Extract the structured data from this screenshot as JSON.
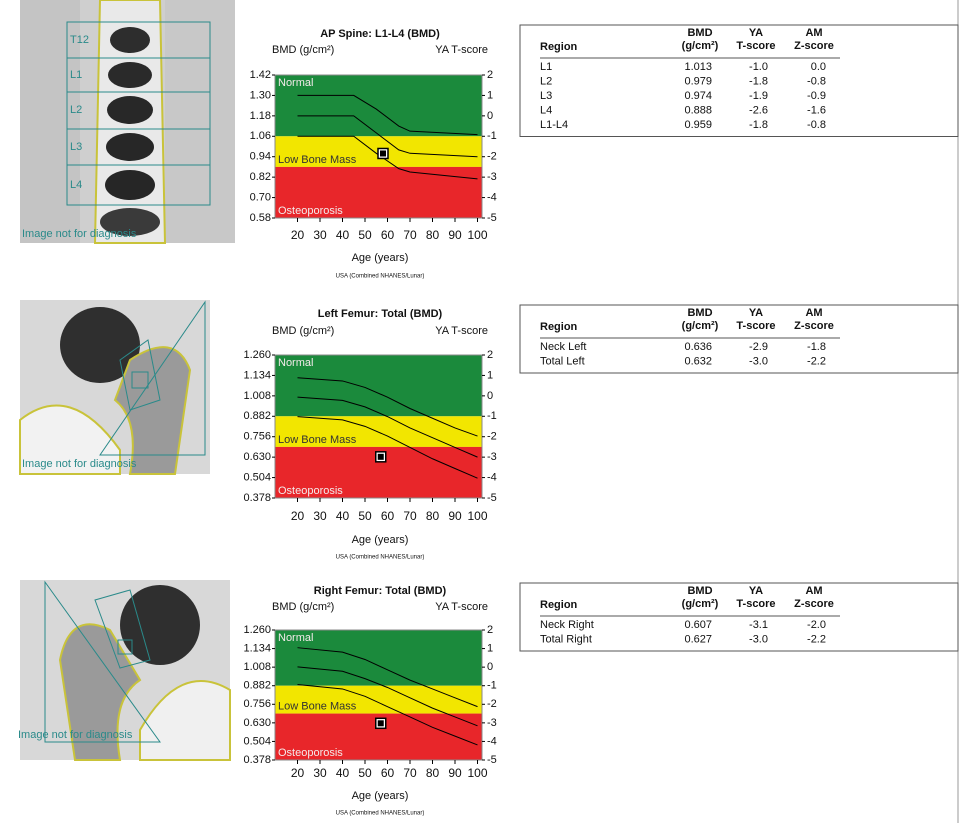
{
  "chart_data": [
    {
      "type": "zone",
      "title": "AP Spine: L1-L4 (BMD)",
      "y_label": "BMD (g/cm²)",
      "y2_label": "YA T-score",
      "x_label": "Age (years)",
      "footnote": "USA (Combined NHANES/Lunar)",
      "xlim": [
        10,
        102
      ],
      "xticks": [
        20,
        30,
        40,
        50,
        60,
        70,
        80,
        90,
        100
      ],
      "ylim": [
        0.58,
        1.42
      ],
      "yticks": [
        1.42,
        {
          "value": 1.3,
          "label": "1.30"
        },
        1.18,
        1.06,
        0.94,
        0.82,
        {
          "value": 0.7,
          "label": "0.70"
        },
        0.58
      ],
      "y2lim": [
        -5,
        2
      ],
      "y2ticks": [
        2,
        1,
        0,
        -1,
        -2,
        -3,
        -4,
        -5
      ],
      "zones": [
        {
          "label": "Normal",
          "color": "#1b8a3c",
          "from": -1,
          "to": 2
        },
        {
          "label": "Low Bone Mass",
          "color": "#f2e600",
          "from": -2.5,
          "to": -1
        },
        {
          "label": "Osteoporosis",
          "color": "#e8262a",
          "from": -5,
          "to": -2.5
        }
      ],
      "x": [
        20,
        45,
        55,
        65,
        70,
        100
      ],
      "series": [
        {
          "color": "#000000",
          "values": [
            1.3,
            1.3,
            1.22,
            1.12,
            1.09,
            1.07
          ]
        },
        {
          "color": "#000000",
          "values": [
            1.18,
            1.18,
            1.08,
            0.98,
            0.96,
            0.94
          ]
        },
        {
          "color": "#000000",
          "values": [
            1.06,
            1.06,
            0.96,
            0.87,
            0.85,
            0.81
          ]
        }
      ],
      "point": {
        "x": 58,
        "y": 0.959
      }
    },
    {
      "type": "zone",
      "title": "Left Femur: Total (BMD)",
      "y_label": "BMD (g/cm²)",
      "y2_label": "YA T-score",
      "x_label": "Age (years)",
      "footnote": "USA (Combined NHANES/Lunar)",
      "xlim": [
        10,
        102
      ],
      "xticks": [
        20,
        30,
        40,
        50,
        60,
        70,
        80,
        90,
        100
      ],
      "ylim": [
        0.378,
        1.26
      ],
      "yticks": [
        {
          "value": 1.26,
          "label": "1.260"
        },
        1.134,
        1.008,
        0.882,
        0.756,
        {
          "value": 0.63,
          "label": "0.630"
        },
        0.504,
        0.378
      ],
      "y2lim": [
        -5,
        2
      ],
      "y2ticks": [
        2,
        1,
        0,
        -1,
        -2,
        -3,
        -4,
        -5
      ],
      "zones": [
        {
          "label": "Normal",
          "color": "#1b8a3c",
          "from": -1,
          "to": 2
        },
        {
          "label": "Low Bone Mass",
          "color": "#f2e600",
          "from": -2.5,
          "to": -1
        },
        {
          "label": "Osteoporosis",
          "color": "#e8262a",
          "from": -5,
          "to": -2.5
        }
      ],
      "x": [
        20,
        40,
        50,
        60,
        70,
        80,
        90,
        100
      ],
      "series": [
        {
          "color": "#000000",
          "values": [
            1.12,
            1.1,
            1.06,
            1.0,
            0.93,
            0.87,
            0.81,
            0.76
          ]
        },
        {
          "color": "#000000",
          "values": [
            1.0,
            0.98,
            0.94,
            0.88,
            0.81,
            0.75,
            0.69,
            0.63
          ]
        },
        {
          "color": "#000000",
          "values": [
            0.88,
            0.86,
            0.82,
            0.76,
            0.69,
            0.62,
            0.56,
            0.5
          ]
        }
      ],
      "point": {
        "x": 57,
        "y": 0.632
      }
    },
    {
      "type": "zone",
      "title": "Right Femur: Total (BMD)",
      "y_label": "BMD (g/cm²)",
      "y2_label": "YA T-score",
      "x_label": "Age (years)",
      "footnote": "USA (Combined NHANES/Lunar)",
      "xlim": [
        10,
        102
      ],
      "xticks": [
        20,
        30,
        40,
        50,
        60,
        70,
        80,
        90,
        100
      ],
      "ylim": [
        0.378,
        1.26
      ],
      "yticks": [
        {
          "value": 1.26,
          "label": "1.260"
        },
        1.134,
        1.008,
        0.882,
        0.756,
        {
          "value": 0.63,
          "label": "0.630"
        },
        0.504,
        0.378
      ],
      "y2lim": [
        -5,
        2
      ],
      "y2ticks": [
        2,
        1,
        0,
        -1,
        -2,
        -3,
        -4,
        -5
      ],
      "zones": [
        {
          "label": "Normal",
          "color": "#1b8a3c",
          "from": -1,
          "to": 2
        },
        {
          "label": "Low Bone Mass",
          "color": "#f2e600",
          "from": -2.5,
          "to": -1
        },
        {
          "label": "Osteoporosis",
          "color": "#e8262a",
          "from": -5,
          "to": -2.5
        }
      ],
      "x": [
        20,
        40,
        50,
        60,
        70,
        80,
        90,
        100
      ],
      "series": [
        {
          "color": "#000000",
          "values": [
            1.14,
            1.11,
            1.06,
            0.99,
            0.92,
            0.86,
            0.8,
            0.74
          ]
        },
        {
          "color": "#000000",
          "values": [
            1.01,
            0.98,
            0.93,
            0.87,
            0.8,
            0.73,
            0.67,
            0.61
          ]
        },
        {
          "color": "#000000",
          "values": [
            0.89,
            0.86,
            0.81,
            0.74,
            0.67,
            0.6,
            0.54,
            0.48
          ]
        }
      ],
      "point": {
        "x": 57,
        "y": 0.627
      }
    }
  ],
  "tables": [
    {
      "columns": [
        [
          "Region"
        ],
        [
          "BMD",
          "(g/cm²)"
        ],
        [
          "YA",
          "T-score"
        ],
        [
          "AM",
          "Z-score"
        ]
      ],
      "rows": [
        [
          "L1",
          "1.013",
          "-1.0",
          "0.0"
        ],
        [
          "L2",
          "0.979",
          "-1.8",
          "-0.8"
        ],
        [
          "L3",
          "0.974",
          "-1.9",
          "-0.9"
        ],
        [
          "L4",
          "0.888",
          "-2.6",
          "-1.6"
        ],
        [
          "L1-L4",
          "0.959",
          "-1.8",
          "-0.8"
        ]
      ]
    },
    {
      "columns": [
        [
          "Region"
        ],
        [
          "BMD",
          "(g/cm²)"
        ],
        [
          "YA",
          "T-score"
        ],
        [
          "AM",
          "Z-score"
        ]
      ],
      "rows": [
        [
          "Neck Left",
          "0.636",
          "-2.9",
          "-1.8"
        ],
        [
          "Total Left",
          "0.632",
          "-3.0",
          "-2.2"
        ]
      ]
    },
    {
      "columns": [
        [
          "Region"
        ],
        [
          "BMD",
          "(g/cm²)"
        ],
        [
          "YA",
          "T-score"
        ],
        [
          "AM",
          "Z-score"
        ]
      ],
      "rows": [
        [
          "Neck Right",
          "0.607",
          "-3.1",
          "-2.0"
        ],
        [
          "Total Right",
          "0.627",
          "-3.0",
          "-2.2"
        ]
      ]
    }
  ],
  "images": [
    {
      "labels": [
        "T12",
        "L1",
        "L2",
        "L3",
        "L4"
      ],
      "caption": "Image not for diagnosis"
    },
    {
      "caption": "Image not for diagnosis"
    },
    {
      "caption": "Image not for diagnosis"
    }
  ]
}
